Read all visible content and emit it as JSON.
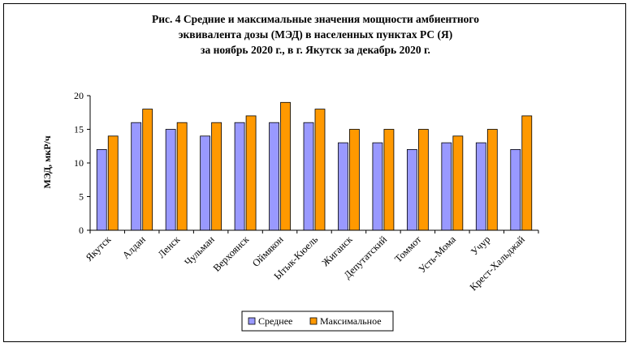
{
  "chart_data": {
    "type": "bar",
    "title_lines": [
      "Рис. 4  Средние и максимальные значения мощности амбиентного",
      "эквивалента дозы (МЭД) в населенных пунктах РС (Я)",
      "за ноябрь 2020 г., в г. Якутск за декабрь 2020 г."
    ],
    "ylabel": "МЭД, мкР/ч",
    "xlabel": "",
    "ylim": [
      0,
      20
    ],
    "yticks": [
      0,
      5,
      10,
      15,
      20
    ],
    "categories": [
      "Якутск",
      "Алдан",
      "Ленск",
      "Чульман",
      "Верхоянск",
      "Оймякон",
      "Ытык-Кюель",
      "Жиганск",
      "Депутатский",
      "Томмот",
      "Усть-Мома",
      "Учур",
      "Крест-Хальджай"
    ],
    "series": [
      {
        "name": "Среднее",
        "color": "#9999FF",
        "values": [
          12,
          16,
          15,
          14,
          16,
          16,
          16,
          13,
          13,
          12,
          13,
          13,
          12
        ]
      },
      {
        "name": "Максимальное",
        "color": "#FF9900",
        "values": [
          14,
          18,
          16,
          16,
          17,
          19,
          18,
          15,
          15,
          15,
          14,
          15,
          17
        ]
      }
    ],
    "legend_position": "bottom"
  }
}
